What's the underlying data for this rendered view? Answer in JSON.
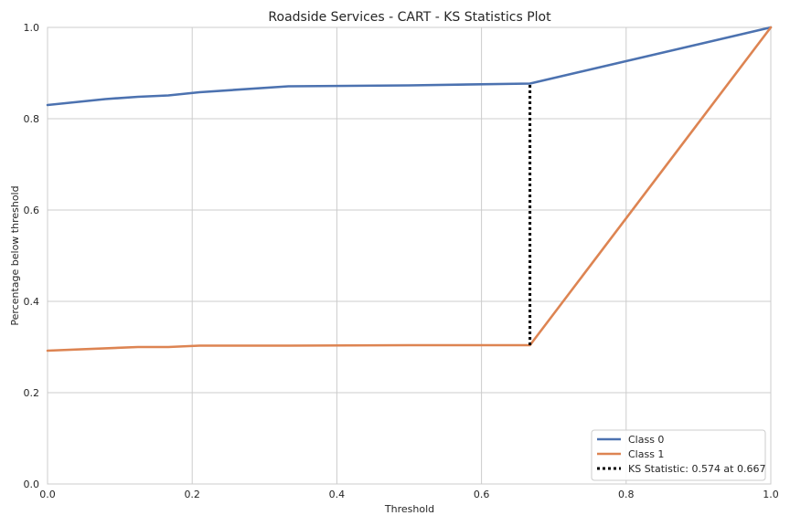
{
  "chart_data": {
    "type": "line",
    "title": "Roadside Services - CART - KS Statistics Plot",
    "xlabel": "Threshold",
    "ylabel": "Percentage below threshold",
    "xlim": [
      0,
      1
    ],
    "ylim": [
      0,
      1
    ],
    "xticks": [
      "0.0",
      "0.2",
      "0.4",
      "0.6",
      "0.8",
      "1.0"
    ],
    "yticks": [
      "0.0",
      "0.2",
      "0.4",
      "0.6",
      "0.8",
      "1.0"
    ],
    "grid": true,
    "legend_position": "lower-right",
    "series": [
      {
        "name": "Class 0",
        "color": "#4c72b0",
        "x": [
          0.0,
          0.08,
          0.125,
          0.167,
          0.21,
          0.333,
          0.5,
          0.667,
          1.0
        ],
        "y": [
          0.83,
          0.843,
          0.848,
          0.851,
          0.858,
          0.871,
          0.873,
          0.877,
          1.0
        ]
      },
      {
        "name": "Class 1",
        "color": "#dd8452",
        "x": [
          0.0,
          0.125,
          0.167,
          0.21,
          0.333,
          0.5,
          0.667,
          1.0
        ],
        "y": [
          0.292,
          0.3,
          0.3,
          0.303,
          0.303,
          0.304,
          0.304,
          1.0
        ]
      }
    ],
    "ks_statistic": {
      "label": "KS Statistic: 0.574 at 0.667",
      "x": 0.667,
      "y_low": 0.304,
      "y_high": 0.877,
      "color": "#000000"
    }
  }
}
